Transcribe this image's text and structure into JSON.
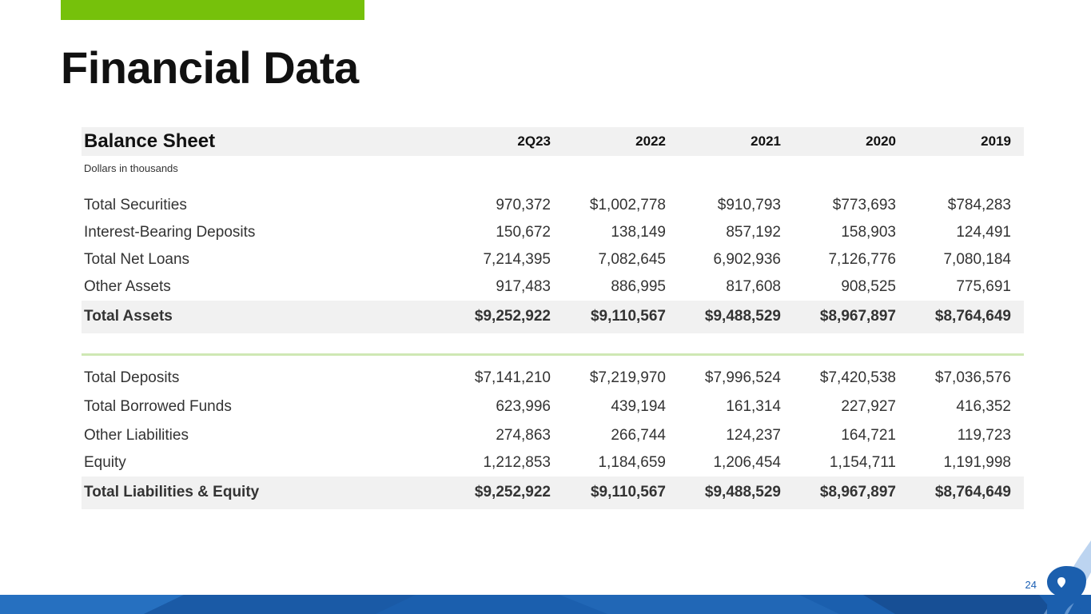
{
  "slide": {
    "title": "Financial Data",
    "page_number": "24",
    "accent_color": "#76c10b",
    "brand_color": "#1a5fb4"
  },
  "table": {
    "header": {
      "label": "Balance Sheet",
      "columns": [
        "2Q23",
        "2022",
        "2021",
        "2020",
        "2019"
      ]
    },
    "units": "Dollars in thousands",
    "assets": [
      {
        "label": "Total Securities",
        "values": [
          "970,372",
          "$1,002,778",
          "$910,793",
          "$773,693",
          "$784,283"
        ]
      },
      {
        "label": "Interest-Bearing Deposits",
        "values": [
          "150,672",
          "138,149",
          "857,192",
          "158,903",
          "124,491"
        ]
      },
      {
        "label": "Total Net Loans",
        "values": [
          "7,214,395",
          "7,082,645",
          "6,902,936",
          "7,126,776",
          "7,080,184"
        ]
      },
      {
        "label": "Other Assets",
        "values": [
          "917,483",
          "886,995",
          "817,608",
          "908,525",
          "775,691"
        ]
      }
    ],
    "total_assets": {
      "label": "Total Assets",
      "values": [
        "$9,252,922",
        "$9,110,567",
        "$9,488,529",
        "$8,967,897",
        "$8,764,649"
      ]
    },
    "liabilities": [
      {
        "label": "Total Deposits",
        "values": [
          "$7,141,210",
          "$7,219,970",
          "$7,996,524",
          "$7,420,538",
          "$7,036,576"
        ]
      },
      {
        "label": "Total Borrowed Funds",
        "values": [
          "623,996",
          "439,194",
          "161,314",
          "227,927",
          "416,352"
        ]
      },
      {
        "label": "Other Liabilities",
        "values": [
          "274,863",
          "266,744",
          "124,237",
          "164,721",
          "119,723"
        ]
      },
      {
        "label": "Equity",
        "values": [
          "1,212,853",
          "1,184,659",
          "1,206,454",
          "1,154,711",
          "1,191,998"
        ]
      }
    ],
    "total_liabilities_equity": {
      "label": "Total Liabilities & Equity",
      "values": [
        "$9,252,922",
        "$9,110,567",
        "$9,488,529",
        "$8,967,897",
        "$8,764,649"
      ]
    }
  }
}
